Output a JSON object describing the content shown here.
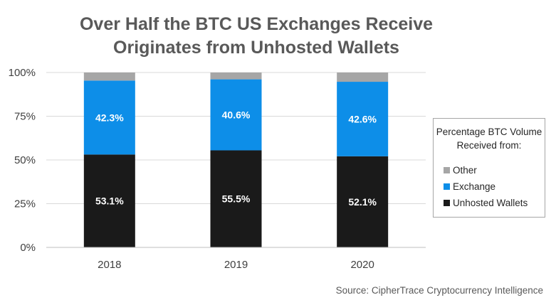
{
  "chart_data": {
    "type": "bar",
    "stacked": true,
    "title": "Over Half the BTC US Exchanges Receive Originates from Unhosted Wallets",
    "title_lines": [
      "Over Half the BTC US Exchanges Receive",
      "Originates from Unhosted Wallets"
    ],
    "categories": [
      "2018",
      "2019",
      "2020"
    ],
    "series": [
      {
        "name": "Unhosted Wallets",
        "values": [
          53.1,
          55.5,
          52.1
        ],
        "color": "#1a1a1a",
        "labels": [
          "53.1%",
          "55.5%",
          "52.1%"
        ]
      },
      {
        "name": "Exchange",
        "values": [
          42.3,
          40.6,
          42.6
        ],
        "color": "#0d8ee8",
        "labels": [
          "42.3%",
          "40.6%",
          "42.6%"
        ]
      },
      {
        "name": "Other",
        "values": [
          4.6,
          3.9,
          5.3
        ],
        "color": "#a6a6a6"
      }
    ],
    "yticks": [
      "0%",
      "25%",
      "50%",
      "75%",
      "100%"
    ],
    "ylim": [
      0,
      100
    ],
    "grid": true,
    "legend_title": "Percentage BTC Volume Received from:",
    "legend_order": [
      "Other",
      "Exchange",
      "Unhosted Wallets"
    ],
    "legend_position": "right",
    "source": "Source: CipherTrace Cryptocurrency Intelligence"
  }
}
